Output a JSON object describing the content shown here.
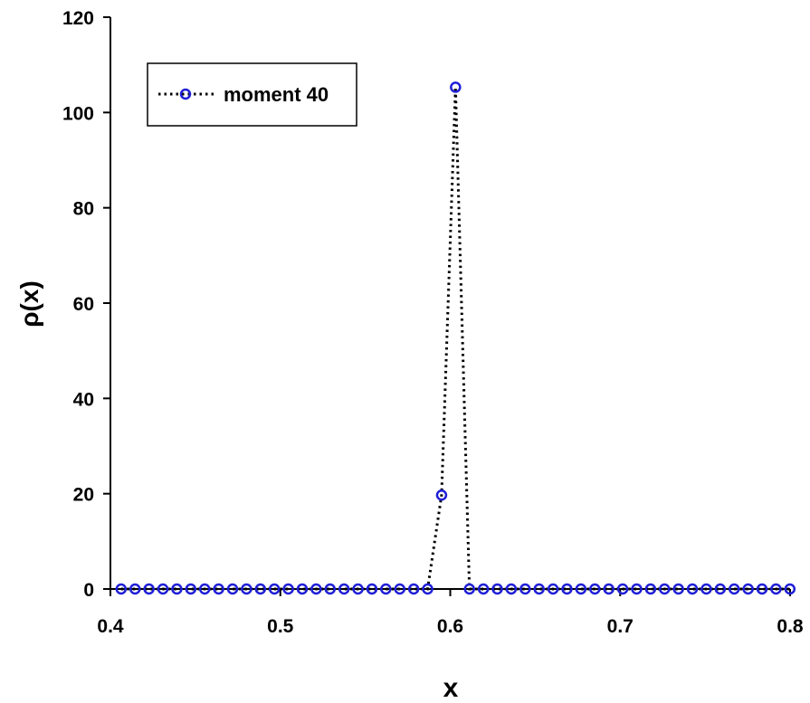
{
  "chart_data": {
    "type": "line",
    "xlabel": "x",
    "ylabel": "ρ(x)",
    "xlim": [
      0.4,
      0.8
    ],
    "ylim": [
      0,
      120
    ],
    "xticks": [
      "0.4",
      "0.5",
      "0.6",
      "0.7",
      "0.8"
    ],
    "yticks": [
      "0",
      "20",
      "40",
      "60",
      "80",
      "100",
      "120"
    ],
    "grid": false,
    "legend_position": "top-left",
    "line_style": "dotted",
    "marker": "open-circle",
    "colors": {
      "marker": "#1f1fd6",
      "line": "#000000"
    },
    "series": [
      {
        "name": "moment 40",
        "x": [
          0.4063,
          0.4145,
          0.4227,
          0.4309,
          0.4391,
          0.4473,
          0.4555,
          0.4637,
          0.4719,
          0.4801,
          0.4883,
          0.4965,
          0.5047,
          0.5129,
          0.5211,
          0.5293,
          0.5375,
          0.5457,
          0.5539,
          0.5621,
          0.5703,
          0.5785,
          0.5867,
          0.5949,
          0.6031,
          0.6113,
          0.6195,
          0.6277,
          0.6359,
          0.6441,
          0.6523,
          0.6605,
          0.6687,
          0.6769,
          0.6851,
          0.6933,
          0.7015,
          0.7097,
          0.7179,
          0.7261,
          0.7343,
          0.7425,
          0.7507,
          0.7589,
          0.7671,
          0.7753,
          0.7835,
          0.7917,
          0.7999
        ],
        "y": [
          0,
          0,
          0,
          0,
          0,
          0,
          0,
          0,
          0,
          0,
          0,
          0,
          0,
          0,
          0,
          0,
          0,
          0,
          0,
          0,
          0,
          0,
          0,
          19.7,
          105.3,
          0,
          0,
          0,
          0,
          0,
          0,
          0,
          0,
          0,
          0,
          0,
          0,
          0,
          0,
          0,
          0,
          0,
          0,
          0,
          0,
          0,
          0,
          0,
          0
        ]
      }
    ]
  }
}
